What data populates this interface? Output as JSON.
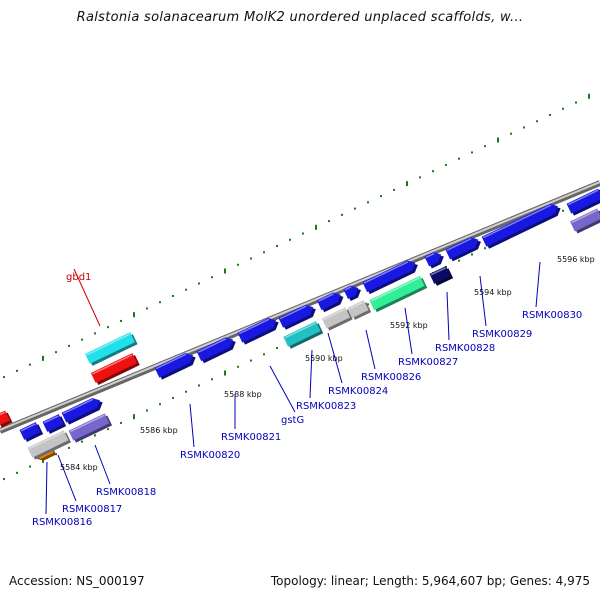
{
  "title": "Ralstonia solanacearum MolK2 unordered unplaced scaffolds, w...",
  "footer": {
    "accession": "Accession: NS_000197",
    "topology": "Topology: linear; Length: 5,964,607 bp; Genes: 4,975"
  },
  "colors": {
    "backbone": "#888888",
    "tick": "#1a7a1a",
    "label_blue": "#0000bb",
    "label_red": "#cc0000",
    "gene_blue": "#1818e0",
    "gene_cyan": "#22e0ea",
    "gene_red": "#ee1111",
    "gene_gray": "#c4c4c4",
    "gene_teal": "#22bfc4",
    "gene_green": "#33ee99",
    "gene_navy": "#0b0b66",
    "gene_purple": "#7766cc",
    "gene_orange": "#ee8800"
  },
  "ruler": [
    "5584 kbp",
    "5586 kbp",
    "5588 kbp",
    "5590 kbp",
    "5592 kbp",
    "5594 kbp",
    "5596 kbp"
  ],
  "genes": [
    {
      "id": "gbd1",
      "color": "gene_cyan",
      "label_color": "label_red"
    },
    {
      "id": "",
      "color": "gene_red"
    },
    {
      "id": "",
      "color": "gene_red"
    },
    {
      "id": "RSMK00816",
      "color": "gene_orange",
      "label_color": "label_blue"
    },
    {
      "id": "RSMK00817",
      "color": "gene_gray",
      "label_color": "label_blue"
    },
    {
      "id": "RSMK00818",
      "color": "gene_purple",
      "label_color": "label_blue"
    },
    {
      "id": "",
      "color": "gene_blue"
    },
    {
      "id": "",
      "color": "gene_blue"
    },
    {
      "id": "",
      "color": "gene_blue"
    },
    {
      "id": "RSMK00820",
      "color": "gene_blue",
      "label_color": "label_blue"
    },
    {
      "id": "RSMK00821",
      "color": "gene_blue",
      "label_color": "label_blue"
    },
    {
      "id": "gstG",
      "color": "gene_blue",
      "label_color": "label_blue"
    },
    {
      "id": "RSMK00823",
      "color": "gene_teal",
      "label_color": "label_blue"
    },
    {
      "id": "RSMK00824",
      "color": "gene_gray",
      "label_color": "label_blue"
    },
    {
      "id": "RSMK00826",
      "color": "gene_gray",
      "label_color": "label_blue"
    },
    {
      "id": "RSMK00827",
      "color": "gene_green",
      "label_color": "label_blue"
    },
    {
      "id": "RSMK00828",
      "color": "gene_navy",
      "label_color": "label_blue"
    },
    {
      "id": "RSMK00829",
      "color": "gene_blue",
      "label_color": "label_blue"
    },
    {
      "id": "RSMK00830",
      "color": "gene_blue",
      "label_color": "label_blue"
    },
    {
      "id": "",
      "color": "gene_blue"
    },
    {
      "id": "",
      "color": "gene_blue"
    },
    {
      "id": "",
      "color": "gene_blue"
    },
    {
      "id": "",
      "color": "gene_blue"
    },
    {
      "id": "",
      "color": "gene_purple"
    }
  ]
}
